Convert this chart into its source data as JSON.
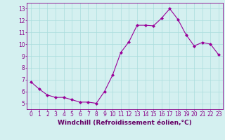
{
  "x": [
    0,
    1,
    2,
    3,
    4,
    5,
    6,
    7,
    8,
    9,
    10,
    11,
    12,
    13,
    14,
    15,
    16,
    17,
    18,
    19,
    20,
    21,
    22,
    23
  ],
  "y": [
    6.8,
    6.2,
    5.7,
    5.5,
    5.5,
    5.3,
    5.1,
    5.1,
    5.0,
    6.0,
    7.4,
    9.3,
    10.2,
    11.6,
    11.6,
    11.55,
    12.2,
    13.0,
    12.1,
    10.8,
    9.85,
    10.15,
    10.0,
    9.1
  ],
  "line_color": "#990099",
  "marker": "D",
  "markersize": 2.0,
  "linewidth": 0.8,
  "xlabel": "Windchill (Refroidissement éolien,°C)",
  "xlabel_fontsize": 6.5,
  "xlabel_color": "#660066",
  "xtick_labels": [
    "0",
    "1",
    "2",
    "3",
    "4",
    "5",
    "6",
    "7",
    "8",
    "9",
    "10",
    "11",
    "12",
    "13",
    "14",
    "15",
    "16",
    "17",
    "18",
    "19",
    "20",
    "21",
    "22",
    "23"
  ],
  "ytick_labels": [
    "5",
    "6",
    "7",
    "8",
    "9",
    "10",
    "11",
    "12",
    "13"
  ],
  "ylim": [
    4.5,
    13.5
  ],
  "xlim": [
    -0.5,
    23.5
  ],
  "bg_color": "#d4f0f0",
  "grid_color": "#aadddd",
  "tick_color": "#880088",
  "tick_fontsize": 5.5,
  "spine_color": "#880088"
}
